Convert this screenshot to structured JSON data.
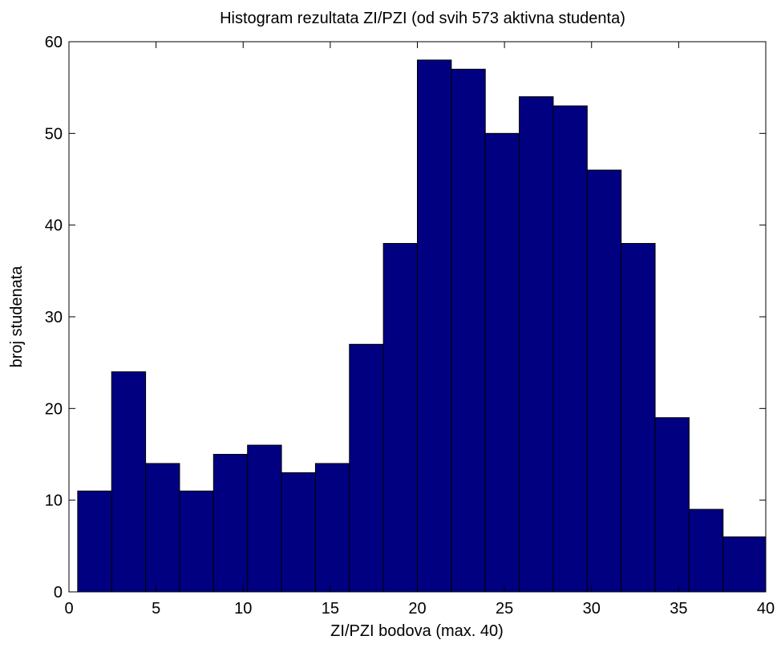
{
  "chart_data": {
    "type": "bar",
    "title": "Histogram rezultata ZI/PZI (od svih 573 aktivna studenta)",
    "xlabel": "ZI/PZI bodova (max. 40)",
    "ylabel": "broj studenata",
    "xlim": [
      0,
      40
    ],
    "ylim": [
      0,
      60
    ],
    "xticks": [
      0,
      5,
      10,
      15,
      20,
      25,
      30,
      35,
      40
    ],
    "yticks": [
      0,
      10,
      20,
      30,
      40,
      50,
      60
    ],
    "bins": [
      {
        "x0": 0.5,
        "x1": 2.45,
        "count": 11
      },
      {
        "x0": 2.45,
        "x1": 4.4,
        "count": 24
      },
      {
        "x0": 4.4,
        "x1": 6.35,
        "count": 14
      },
      {
        "x0": 6.35,
        "x1": 8.3,
        "count": 11
      },
      {
        "x0": 8.3,
        "x1": 10.25,
        "count": 15
      },
      {
        "x0": 10.25,
        "x1": 12.2,
        "count": 16
      },
      {
        "x0": 12.2,
        "x1": 14.15,
        "count": 13
      },
      {
        "x0": 14.15,
        "x1": 16.1,
        "count": 14
      },
      {
        "x0": 16.1,
        "x1": 18.05,
        "count": 27
      },
      {
        "x0": 18.05,
        "x1": 20.0,
        "count": 38
      },
      {
        "x0": 20.0,
        "x1": 21.95,
        "count": 58
      },
      {
        "x0": 21.95,
        "x1": 23.9,
        "count": 57
      },
      {
        "x0": 23.9,
        "x1": 25.85,
        "count": 50
      },
      {
        "x0": 25.85,
        "x1": 27.8,
        "count": 54
      },
      {
        "x0": 27.8,
        "x1": 29.75,
        "count": 53
      },
      {
        "x0": 29.75,
        "x1": 31.7,
        "count": 46
      },
      {
        "x0": 31.7,
        "x1": 33.65,
        "count": 38
      },
      {
        "x0": 33.65,
        "x1": 35.6,
        "count": 19
      },
      {
        "x0": 35.6,
        "x1": 37.55,
        "count": 9
      },
      {
        "x0": 37.55,
        "x1": 40.0,
        "count": 6
      }
    ],
    "bar_color": "#000080",
    "grid": false,
    "legend": false
  }
}
